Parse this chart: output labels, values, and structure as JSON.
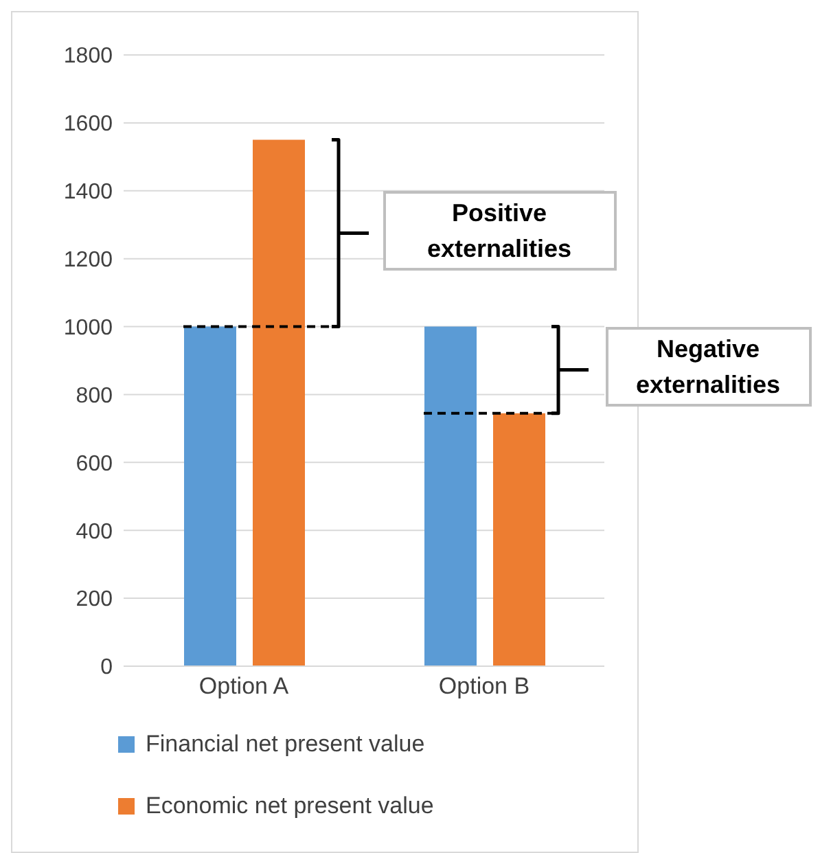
{
  "chart_data": {
    "type": "bar",
    "categories": [
      "Option A",
      "Option B"
    ],
    "series": [
      {
        "name": "Financial net present value",
        "color": "#5b9bd5",
        "values": [
          1000,
          1000
        ]
      },
      {
        "name": "Economic net present value",
        "color": "#ed7d31",
        "values": [
          1550,
          745
        ]
      }
    ],
    "ylim": [
      0,
      1800
    ],
    "yticks": [
      0,
      200,
      400,
      600,
      800,
      1000,
      1200,
      1400,
      1600,
      1800
    ],
    "grid": "y",
    "legend": "bottom",
    "annotations": [
      "Positive externalities",
      "Negative externalities"
    ]
  }
}
